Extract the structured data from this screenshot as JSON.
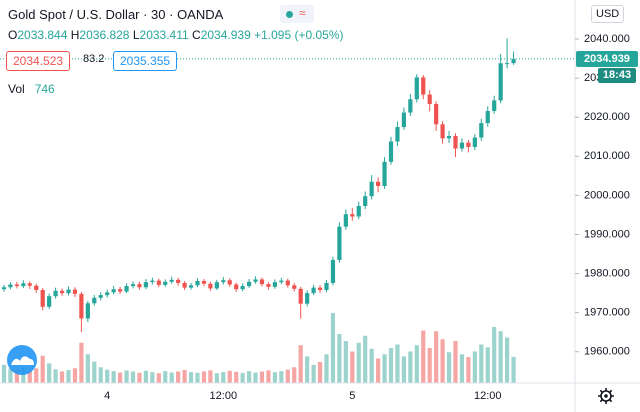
{
  "chart_data": {
    "type": "candlestick",
    "title": "Gold Spot / U.S. Dollar · 30 · OANDA",
    "ohlc_labels": [
      "O",
      "H",
      "L",
      "C"
    ],
    "change_label": "+1.095 (+0.05%)",
    "bid": 2034.523,
    "spread": 83.2,
    "ask": 2035.355,
    "volume_label": "Vol",
    "currency": "USD",
    "countdown": "18:43",
    "up_color": "#26a69a",
    "down_color": "#ef5350",
    "volume_up_color": "#9dd3cd",
    "volume_down_color": "#f5a6a4",
    "grid": false,
    "ylim": [
      1952,
      2050
    ],
    "yticks": [
      {
        "value": 1960,
        "label": "1960.000"
      },
      {
        "value": 1970,
        "label": "1970.000"
      },
      {
        "value": 1980,
        "label": "1980.000"
      },
      {
        "value": 1990,
        "label": "1990.000"
      },
      {
        "value": 2000,
        "label": "2000.000"
      },
      {
        "value": 2010,
        "label": "2010.000"
      },
      {
        "value": 2020,
        "label": "2020.000"
      },
      {
        "value": 2030,
        "label": "2030.000"
      },
      {
        "value": 2040,
        "label": "2040.000"
      }
    ],
    "categories": [
      null,
      null,
      null,
      null,
      null,
      null,
      null,
      null,
      null,
      null,
      null,
      null,
      null,
      null,
      null,
      null,
      "4",
      null,
      null,
      null,
      null,
      null,
      null,
      null,
      null,
      null,
      null,
      null,
      null,
      null,
      null,
      null,
      null,
      null,
      "12:00",
      null,
      null,
      null,
      null,
      null,
      null,
      null,
      null,
      null,
      null,
      null,
      null,
      null,
      null,
      null,
      null,
      null,
      null,
      null,
      "5",
      null,
      null,
      null,
      null,
      null,
      null,
      null,
      null,
      null,
      null,
      null,
      null,
      null,
      null,
      null,
      null,
      null,
      null,
      null,
      null,
      "12:00",
      null,
      null,
      null,
      null
    ],
    "open": [
      1976.0,
      1976.5,
      1977.2,
      1976.8,
      1977.5,
      1976.9,
      1975.8,
      1971.5,
      1974.2,
      1975.6,
      1975.0,
      1975.9,
      1974.8,
      1968.5,
      1972.4,
      1973.8,
      1974.5,
      1975.2,
      1976.0,
      1975.4,
      1976.8,
      1977.3,
      1976.5,
      1977.8,
      1978.2,
      1977.1,
      1977.9,
      1978.4,
      1977.6,
      1976.4,
      1977.0,
      1978.1,
      1977.4,
      1976.2,
      1977.8,
      1978.3,
      1977.2,
      1976.0,
      1976.8,
      1977.9,
      1978.5,
      1977.3,
      1976.6,
      1977.8,
      1978.2,
      1977.0,
      1976.1,
      1972.3,
      1975.0,
      1976.4,
      1975.8,
      1977.6,
      1983.5,
      1992.0,
      1995.2,
      1994.6,
      1997.3,
      1999.8,
      2003.5,
      2002.4,
      2008.6,
      2013.8,
      2017.5,
      2021.2,
      2024.6,
      2030.2,
      2025.8,
      2023.4,
      2018.2,
      2014.6,
      2015.2,
      2012.0,
      2013.5,
      2012.4,
      2014.8,
      2018.5,
      2021.6,
      2024.3,
      2033.8,
      2033.844
    ],
    "high": [
      1977.1,
      1977.8,
      1977.9,
      1978.3,
      1978.0,
      1977.4,
      1976.3,
      1974.9,
      1976.4,
      1976.2,
      1976.7,
      1976.5,
      1975.3,
      1973.0,
      1974.5,
      1975.2,
      1975.9,
      1976.8,
      1976.6,
      1977.5,
      1978.0,
      1977.9,
      1978.6,
      1979.0,
      1978.7,
      1978.5,
      1979.2,
      1978.9,
      1978.1,
      1977.6,
      1978.8,
      1978.6,
      1977.9,
      1978.4,
      1979.1,
      1978.8,
      1977.7,
      1977.5,
      1978.6,
      1979.3,
      1979.0,
      1977.8,
      1978.5,
      1978.9,
      1978.7,
      1977.6,
      1976.6,
      1975.7,
      1977.1,
      1977.0,
      1978.3,
      1984.3,
      1993.1,
      1996.4,
      1996.8,
      1998.4,
      2001.0,
      2005.2,
      2004.6,
      2009.8,
      2015.0,
      2018.9,
      2022.5,
      2026.0,
      2031.0,
      2030.8,
      2026.9,
      2024.1,
      2019.0,
      2016.5,
      2015.9,
      2014.6,
      2014.2,
      2015.7,
      2019.6,
      2022.8,
      2025.5,
      2036.2,
      2040.2,
      2036.828
    ],
    "low": [
      1975.4,
      1976.0,
      1976.2,
      1976.3,
      1976.1,
      1975.1,
      1970.6,
      1970.9,
      1973.6,
      1974.3,
      1974.4,
      1974.0,
      1965.0,
      1967.6,
      1971.8,
      1973.1,
      1973.9,
      1974.7,
      1974.8,
      1975.0,
      1976.2,
      1975.9,
      1976.0,
      1977.2,
      1976.5,
      1976.6,
      1977.4,
      1976.9,
      1975.8,
      1975.9,
      1976.5,
      1976.8,
      1975.6,
      1975.8,
      1977.2,
      1976.6,
      1975.3,
      1975.5,
      1976.3,
      1977.4,
      1976.7,
      1975.9,
      1976.1,
      1977.3,
      1976.4,
      1975.4,
      1968.5,
      1971.6,
      1974.5,
      1975.0,
      1975.2,
      1977.0,
      1982.8,
      1991.2,
      1993.5,
      1993.9,
      1996.5,
      1999.0,
      2000.8,
      2001.7,
      2007.9,
      2012.6,
      2016.8,
      2020.3,
      2023.8,
      2024.6,
      2021.5,
      2016.5,
      2013.2,
      2013.4,
      2009.8,
      2011.2,
      2011.0,
      2011.6,
      2014.0,
      2017.6,
      2020.9,
      2023.6,
      2032.5,
      2033.411
    ],
    "close": [
      1976.5,
      1977.2,
      1976.8,
      1977.5,
      1976.9,
      1975.8,
      1971.5,
      1974.2,
      1975.6,
      1975.0,
      1975.9,
      1974.8,
      1968.5,
      1972.4,
      1973.8,
      1974.5,
      1975.2,
      1976.0,
      1975.4,
      1976.8,
      1977.3,
      1976.5,
      1977.8,
      1978.2,
      1977.1,
      1977.9,
      1978.4,
      1977.6,
      1976.4,
      1977.0,
      1978.1,
      1977.4,
      1976.2,
      1977.8,
      1978.3,
      1977.2,
      1976.0,
      1976.8,
      1977.9,
      1978.5,
      1977.3,
      1976.6,
      1977.8,
      1978.2,
      1977.0,
      1976.1,
      1972.3,
      1975.0,
      1976.4,
      1975.8,
      1977.6,
      1983.5,
      1992.0,
      1995.2,
      1994.6,
      1997.3,
      1999.8,
      2003.5,
      2002.4,
      2008.6,
      2013.8,
      2017.5,
      2021.2,
      2024.6,
      2030.2,
      2025.8,
      2023.4,
      2018.2,
      2014.6,
      2015.2,
      2012.0,
      2013.5,
      2012.4,
      2014.8,
      2018.5,
      2021.6,
      2024.3,
      2033.8,
      2033.844,
      2034.939
    ],
    "volume": [
      520,
      410,
      380,
      450,
      360,
      420,
      780,
      560,
      390,
      330,
      370,
      420,
      1150,
      820,
      610,
      450,
      380,
      340,
      300,
      360,
      330,
      290,
      350,
      310,
      280,
      340,
      300,
      330,
      370,
      310,
      290,
      330,
      360,
      280,
      310,
      350,
      320,
      290,
      340,
      300,
      330,
      360,
      310,
      340,
      380,
      450,
      1080,
      760,
      520,
      600,
      820,
      2000,
      1400,
      1200,
      900,
      1150,
      1350,
      980,
      700,
      820,
      1000,
      1100,
      760,
      900,
      1080,
      1500,
      1000,
      1480,
      1250,
      880,
      1200,
      820,
      740,
      900,
      1100,
      1020,
      1600,
      1480,
      1300,
      746
    ]
  }
}
